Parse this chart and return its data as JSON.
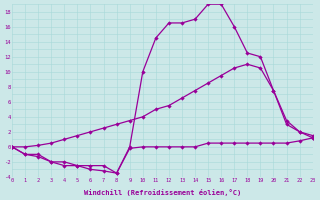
{
  "bg_color": "#cce8e8",
  "line_color": "#990099",
  "xlabel": "Windchill (Refroidissement éolien,°C)",
  "xlim": [
    0,
    23
  ],
  "ylim": [
    -4,
    19
  ],
  "yticks": [
    -4,
    -2,
    0,
    2,
    4,
    6,
    8,
    10,
    12,
    14,
    16,
    18
  ],
  "xticks": [
    0,
    1,
    2,
    3,
    4,
    5,
    6,
    7,
    8,
    9,
    10,
    11,
    12,
    13,
    14,
    15,
    16,
    17,
    18,
    19,
    20,
    21,
    22,
    23
  ],
  "line_bottom_x": [
    0,
    1,
    2,
    3,
    4,
    5,
    6,
    7,
    8,
    9,
    10,
    11,
    12,
    13,
    14,
    15,
    16,
    17,
    18,
    19,
    20,
    21,
    22,
    23
  ],
  "line_bottom_y": [
    0,
    -1,
    -1.3,
    -2,
    -2.5,
    -2.5,
    -3,
    -3.2,
    -3.5,
    -0.2,
    0,
    0,
    0,
    0,
    0,
    0.5,
    0.5,
    0.5,
    0.5,
    0.5,
    0.5,
    0.5,
    0.8,
    1.2
  ],
  "line_mid_x": [
    0,
    1,
    2,
    3,
    4,
    5,
    6,
    7,
    8,
    9,
    10,
    11,
    12,
    13,
    14,
    15,
    16,
    17,
    18,
    19,
    20,
    21,
    22,
    23
  ],
  "line_mid_y": [
    0,
    0,
    0.2,
    0.5,
    1,
    1.5,
    2,
    2.5,
    3,
    3.5,
    4,
    5,
    5.5,
    6.5,
    7.5,
    8.5,
    9.5,
    10.5,
    11,
    10.5,
    7.5,
    3.5,
    2,
    1.5
  ],
  "line_top_x": [
    0,
    1,
    2,
    3,
    4,
    5,
    6,
    7,
    8,
    9,
    10,
    11,
    12,
    13,
    14,
    15,
    16,
    17,
    18,
    19,
    20,
    21,
    22,
    23
  ],
  "line_top_y": [
    0,
    -1,
    -1,
    -2,
    -2,
    -2.5,
    -2.5,
    -2.5,
    -3.5,
    0,
    10,
    14.5,
    16.5,
    16.5,
    17,
    19,
    19,
    16,
    12.5,
    12,
    7.5,
    3,
    2,
    1.2
  ]
}
